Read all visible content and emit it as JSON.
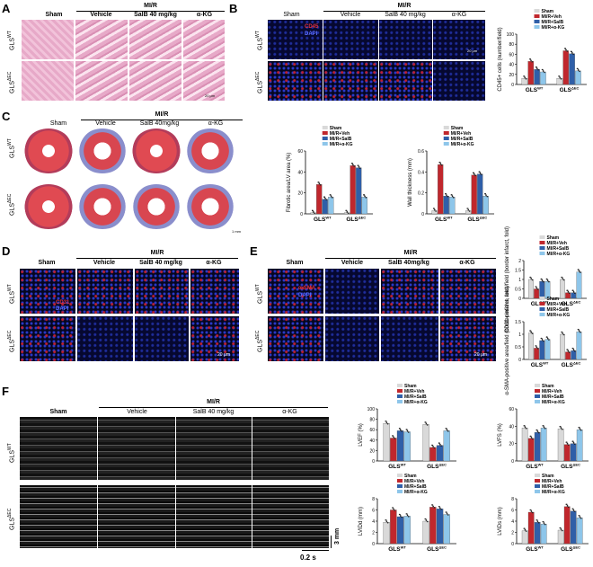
{
  "panels": {
    "A": {
      "letter": "A",
      "groups": [
        "Sham",
        "Vehicle",
        "SalB 40 mg/kg",
        "α-KG"
      ],
      "mi_r": "MI/R",
      "rows": [
        "GLS",
        "GLS"
      ],
      "row_sup": [
        "WT",
        "ΔEC"
      ],
      "scale": "20 μm"
    },
    "B": {
      "letter": "B",
      "groups": [
        "Sham",
        "Vehicle",
        "SalB 40 mg/kg",
        "α-KG"
      ],
      "mi_r": "MI/R",
      "stain1": "CD45",
      "stain2": "DAPI",
      "scale": "20 μm"
    },
    "C": {
      "letter": "C",
      "groups": [
        "Sham",
        "Vehicle",
        "SalB 40mg/kg",
        "α-KG"
      ],
      "mi_r": "MI/R",
      "scale": "1 mm"
    },
    "D": {
      "letter": "D",
      "groups": [
        "Sham",
        "Vehicle",
        "SalB 40 mg/kg",
        "α-KG"
      ],
      "mi_r": "MI/R",
      "stain1": "CD31",
      "stain2": "DAPI",
      "scale": "20 μm"
    },
    "E": {
      "letter": "E",
      "groups": [
        "Sham",
        "Vehicle",
        "SalB 40mg/kg",
        "α-KG"
      ],
      "mi_r": "MI/R",
      "stain1": "α-SMA",
      "stain2": "DAPI",
      "scale": "20 μm"
    },
    "F": {
      "letter": "F",
      "groups": [
        "Sham",
        "Vehicle",
        "SalB 40 mg/kg",
        "α-KG"
      ],
      "mi_r": "MI/R",
      "scale_v": "3 mm",
      "scale_h": "0.2 s"
    }
  },
  "legend4": [
    "Sham",
    "MI/R+Veh",
    "MI/R+SalB",
    "MI/R+α-KG"
  ],
  "legend4b": [
    "Sham",
    "MI/R+Veh",
    "MI/R+SalB",
    "MI/R+α-KG"
  ],
  "colors": {
    "sham": "#d9d9d9",
    "veh": "#c0272d",
    "salb": "#2f5fa8",
    "akg": "#8ec6ea"
  },
  "chart_data": [
    {
      "type": "bar",
      "id": "cd45",
      "ylabel": "CD45+ cells (number/field)",
      "ylim": [
        0,
        100
      ],
      "yticks": [
        0,
        20,
        40,
        60,
        80,
        100
      ],
      "categories": [
        "GLS WT",
        "GLS ΔEC"
      ],
      "series": [
        {
          "name": "Sham",
          "values": [
            12,
            12
          ]
        },
        {
          "name": "MI/R+Veh",
          "values": [
            46,
            67
          ]
        },
        {
          "name": "MI/R+SalB",
          "values": [
            30,
            61
          ]
        },
        {
          "name": "MI/R+α-KG",
          "values": [
            25,
            27
          ]
        }
      ]
    },
    {
      "type": "bar",
      "id": "fibrotic",
      "ylabel": "Fibrotic area/LV area (%)",
      "ylim": [
        0,
        60
      ],
      "yticks": [
        0,
        20,
        40,
        60
      ],
      "categories": [
        "GLS WT",
        "GLS ΔEC"
      ],
      "series": [
        {
          "name": "Sham",
          "values": [
            1,
            1
          ]
        },
        {
          "name": "MI/R+Veh",
          "values": [
            28,
            46
          ]
        },
        {
          "name": "MI/R+SalB",
          "values": [
            14,
            44
          ]
        },
        {
          "name": "MI/R+α-KG",
          "values": [
            16,
            16
          ]
        }
      ]
    },
    {
      "type": "bar",
      "id": "wall",
      "ylabel": "Wall thickness (mm)",
      "ylim": [
        0,
        0.6
      ],
      "yticks": [
        0,
        0.2,
        0.4,
        0.6
      ],
      "categories": [
        "GLS WT",
        "GLS ΔEC"
      ],
      "series": [
        {
          "name": "Sham",
          "values": [
            0.03,
            0.03
          ]
        },
        {
          "name": "MI/R+Veh",
          "values": [
            0.47,
            0.37
          ]
        },
        {
          "name": "MI/R+SalB",
          "values": [
            0.17,
            0.38
          ]
        },
        {
          "name": "MI/R+α-KG",
          "values": [
            0.16,
            0.17
          ]
        }
      ]
    },
    {
      "type": "bar",
      "id": "cd31",
      "ylabel": "CD31-positive area/field (border infarct, fold)",
      "ylim": [
        0,
        2.0
      ],
      "yticks": [
        0,
        0.5,
        1.0,
        1.5,
        2.0
      ],
      "categories": [
        "GLS WT",
        "GLS ΔEC"
      ],
      "series": [
        {
          "name": "Sham",
          "values": [
            1.0,
            1.0
          ]
        },
        {
          "name": "MI/R+Veh",
          "values": [
            0.5,
            0.3
          ]
        },
        {
          "name": "MI/R+SalB",
          "values": [
            0.9,
            0.3
          ]
        },
        {
          "name": "MI/R+α-KG",
          "values": [
            0.9,
            1.4
          ]
        }
      ]
    },
    {
      "type": "bar",
      "id": "sma",
      "ylabel": "α-SMA-positive area/field (border infarct, fold)",
      "ylim": [
        0,
        1.5
      ],
      "yticks": [
        0,
        0.5,
        1.0,
        1.5
      ],
      "categories": [
        "GLS WT",
        "GLS ΔEC"
      ],
      "series": [
        {
          "name": "Sham",
          "values": [
            1.05,
            1.0
          ]
        },
        {
          "name": "MI/R+Veh",
          "values": [
            0.45,
            0.3
          ]
        },
        {
          "name": "MI/R+SalB",
          "values": [
            0.75,
            0.35
          ]
        },
        {
          "name": "MI/R+α-KG",
          "values": [
            0.8,
            1.1
          ]
        }
      ]
    },
    {
      "type": "bar",
      "id": "lvef",
      "ylabel": "LVEF (%)",
      "ylim": [
        0,
        100
      ],
      "yticks": [
        0,
        20,
        40,
        60,
        80,
        100
      ],
      "categories": [
        "GLS WT",
        "GLS ΔEC"
      ],
      "series": [
        {
          "name": "Sham",
          "values": [
            72,
            70
          ]
        },
        {
          "name": "MI/R+Veh",
          "values": [
            44,
            26
          ]
        },
        {
          "name": "MI/R+SalB",
          "values": [
            58,
            30
          ]
        },
        {
          "name": "MI/R+α-KG",
          "values": [
            56,
            58
          ]
        }
      ]
    },
    {
      "type": "bar",
      "id": "lvfs",
      "ylabel": "LVFS (%)",
      "ylim": [
        0,
        60
      ],
      "yticks": [
        0,
        20,
        40,
        60
      ],
      "categories": [
        "GLS WT",
        "GLS ΔEC"
      ],
      "series": [
        {
          "name": "Sham",
          "values": [
            38,
            37
          ]
        },
        {
          "name": "MI/R+Veh",
          "values": [
            26,
            19
          ]
        },
        {
          "name": "MI/R+SalB",
          "values": [
            33,
            20
          ]
        },
        {
          "name": "MI/R+α-KG",
          "values": [
            38,
            36
          ]
        }
      ]
    },
    {
      "type": "bar",
      "id": "lvidd",
      "ylabel": "LVIDd (mm)",
      "ylim": [
        0,
        8
      ],
      "yticks": [
        0,
        2,
        4,
        6,
        8
      ],
      "categories": [
        "GLS WT",
        "GLS ΔEC"
      ],
      "series": [
        {
          "name": "Sham",
          "values": [
            3.8,
            4.0
          ]
        },
        {
          "name": "MI/R+Veh",
          "values": [
            6.0,
            6.5
          ]
        },
        {
          "name": "MI/R+SalB",
          "values": [
            4.8,
            6.2
          ]
        },
        {
          "name": "MI/R+α-KG",
          "values": [
            4.9,
            5.2
          ]
        }
      ]
    },
    {
      "type": "bar",
      "id": "lvids",
      "ylabel": "LVIDs (mm)",
      "ylim": [
        0,
        8
      ],
      "yticks": [
        0,
        2,
        4,
        6,
        8
      ],
      "categories": [
        "GLS WT",
        "GLS ΔEC"
      ],
      "series": [
        {
          "name": "Sham",
          "values": [
            2.3,
            2.4
          ]
        },
        {
          "name": "MI/R+Veh",
          "values": [
            5.6,
            6.6
          ]
        },
        {
          "name": "MI/R+SalB",
          "values": [
            3.8,
            5.8
          ]
        },
        {
          "name": "MI/R+α-KG",
          "values": [
            3.5,
            4.6
          ]
        }
      ]
    }
  ]
}
